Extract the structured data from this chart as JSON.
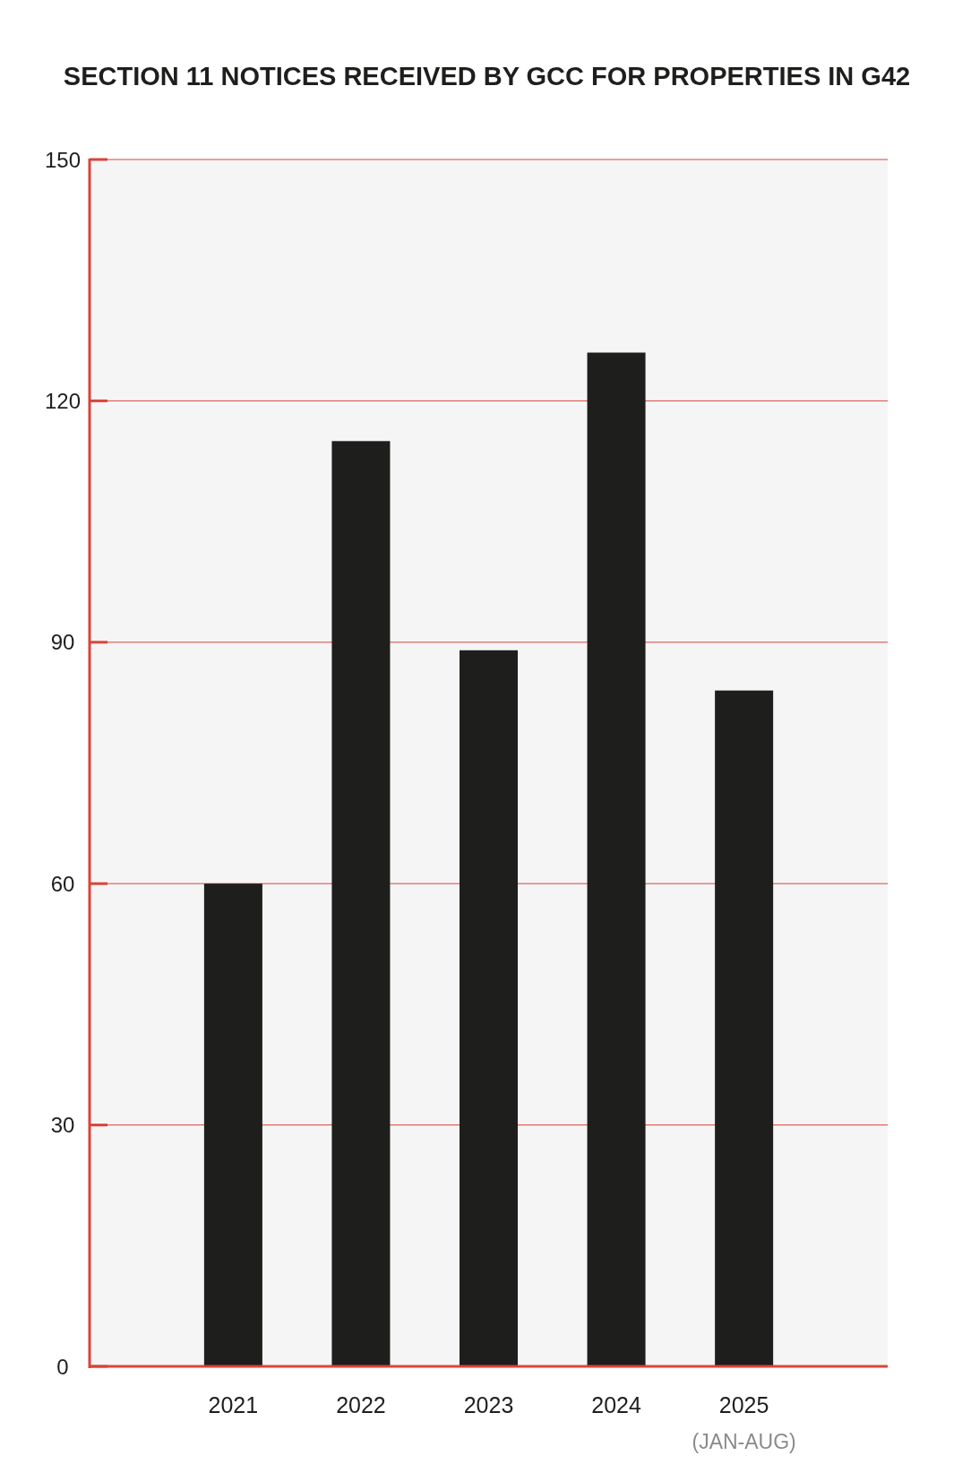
{
  "chart_data": {
    "type": "bar",
    "title": "SECTION 11 NOTICES RECEIVED BY GCC FOR PROPERTIES IN G42",
    "categories": [
      "2021",
      "2022",
      "2023",
      "2024",
      "2025"
    ],
    "values": [
      60,
      115,
      89,
      126,
      84
    ],
    "color": "#1e1e1c",
    "ylim": [
      0,
      150
    ],
    "yticks": [
      0,
      30,
      60,
      90,
      120,
      150
    ],
    "grid": "y",
    "annotations": [
      "(JAN-AUG)"
    ]
  }
}
